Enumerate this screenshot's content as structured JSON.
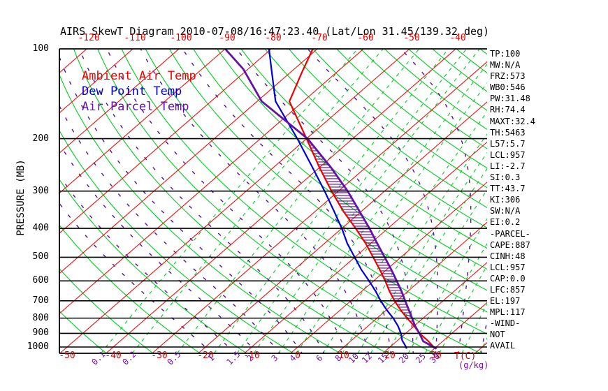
{
  "title": "AIRS SkewT Diagram 2010-07-08/16:47:23.40 (Lat/Lon 31.45/139.32 deg)",
  "legend": [
    {
      "label": "Ambient Air Temp",
      "color": "#ee0000"
    },
    {
      "label": "Dew Point Temp",
      "color": "#0000dd"
    },
    {
      "label": "Air Parcel Temp",
      "color": "#6611aa"
    }
  ],
  "axes": {
    "pressure_label": "PRESSURE (MB)",
    "pressure_ticks": [
      100,
      200,
      300,
      400,
      500,
      600,
      700,
      800,
      900,
      1000
    ],
    "top_temp_ticks": [
      -120,
      -110,
      -100,
      -90,
      -80,
      -70,
      -60,
      -50,
      -40
    ],
    "bottom_temp_ticks": [
      -50,
      -40,
      -30,
      -20,
      -10,
      0,
      10,
      20,
      30
    ],
    "mixing_ratio_labels": [
      0.1,
      0.2,
      0.5,
      1,
      1.5,
      2,
      3,
      4,
      6,
      8,
      10,
      12,
      15,
      20,
      25,
      30
    ],
    "temp_unit_label": "T(C)",
    "mixing_unit_label": "(g/kg)"
  },
  "side_panel": {
    "lines": [
      "TP:100",
      "MW:N/A",
      "FRZ:573",
      "WB0:546",
      "PW:31.48",
      "RH:74.4",
      "MAXT:32.4",
      "TH:5463",
      "L57:5.7",
      "LCL:957",
      "LI:-2.7",
      "SI:0.3",
      "TT:43.7",
      "KI:306",
      "SW:N/A",
      "EI:0.2",
      "-PARCEL-",
      "CAPE:887",
      "CINH:48",
      "LCL:957",
      "CAP:0.0",
      "LFC:857",
      "EL:197",
      "MPL:117",
      "-WIND-",
      "NOT",
      "AVAIL"
    ]
  },
  "chart_data": {
    "type": "line",
    "subtype": "skewt-log-p",
    "xlabel": "Temperature (C)",
    "ylabel": "Pressure (MB)",
    "pressure_range": [
      100,
      1050
    ],
    "grid": {
      "isotherms_c": {
        "min": -120,
        "max": 40,
        "step": 10,
        "color": "#ee1111"
      },
      "dry_adiabats_k": {
        "min": 220,
        "max": 470,
        "step": 10,
        "color": "#00cc22"
      },
      "moist_adiabats_c": {
        "min": -20,
        "max": 40,
        "step": 5,
        "color": "#551199"
      },
      "mixing_ratio_lines_gkg": [
        0.1,
        0.2,
        0.5,
        1,
        1.5,
        2,
        3,
        4,
        6,
        8,
        10,
        12,
        15,
        20,
        25,
        30,
        40,
        50,
        60,
        75
      ],
      "pressure_lines_mb": [
        200,
        300,
        400,
        500,
        600,
        700,
        800,
        900,
        1000
      ]
    },
    "hatch_region": {
      "between": [
        "Ambient Air Temp",
        "Air Parcel Temp"
      ],
      "from_mb": 855,
      "to_mb": 200,
      "color": "#6600aa"
    },
    "series": [
      {
        "name": "Ambient Air Temp",
        "color": "#ee0000",
        "width": 2.2,
        "points_p_t": [
          [
            1013,
            30.5
          ],
          [
            1000,
            29.5
          ],
          [
            950,
            26.5
          ],
          [
            900,
            23
          ],
          [
            850,
            20
          ],
          [
            800,
            16.5
          ],
          [
            750,
            13
          ],
          [
            700,
            9.5
          ],
          [
            650,
            6
          ],
          [
            600,
            2.5
          ],
          [
            550,
            -1.5
          ],
          [
            500,
            -6
          ],
          [
            450,
            -11
          ],
          [
            400,
            -17
          ],
          [
            350,
            -24
          ],
          [
            300,
            -31.5
          ],
          [
            250,
            -40
          ],
          [
            200,
            -50
          ],
          [
            150,
            -63
          ],
          [
            120,
            -67.5
          ],
          [
            100,
            -71
          ]
        ]
      },
      {
        "name": "Dew Point Temp",
        "color": "#0000dd",
        "width": 2.2,
        "points_p_t": [
          [
            1013,
            24
          ],
          [
            1000,
            23.5
          ],
          [
            950,
            21
          ],
          [
            900,
            19
          ],
          [
            850,
            16.5
          ],
          [
            800,
            13.5
          ],
          [
            750,
            10
          ],
          [
            700,
            6.5
          ],
          [
            650,
            3
          ],
          [
            600,
            -1
          ],
          [
            550,
            -5.5
          ],
          [
            500,
            -10
          ],
          [
            450,
            -15
          ],
          [
            400,
            -20
          ],
          [
            350,
            -26
          ],
          [
            300,
            -33
          ],
          [
            250,
            -41.5
          ],
          [
            200,
            -52
          ],
          [
            150,
            -66
          ],
          [
            120,
            -74
          ],
          [
            100,
            -80.5
          ]
        ]
      },
      {
        "name": "Air Parcel Temp",
        "color": "#6611aa",
        "width": 2.8,
        "points_p_t": [
          [
            1013,
            30.5
          ],
          [
            957,
            25.8
          ],
          [
            900,
            23
          ],
          [
            850,
            20.2
          ],
          [
            800,
            17.6
          ],
          [
            750,
            14.8
          ],
          [
            700,
            11.8
          ],
          [
            650,
            8.6
          ],
          [
            600,
            5
          ],
          [
            550,
            1
          ],
          [
            500,
            -3.5
          ],
          [
            450,
            -8.5
          ],
          [
            400,
            -14
          ],
          [
            350,
            -20.5
          ],
          [
            300,
            -28
          ],
          [
            250,
            -37.5
          ],
          [
            200,
            -49.8
          ],
          [
            150,
            -69
          ],
          [
            117,
            -81
          ],
          [
            100,
            -90
          ]
        ]
      }
    ]
  }
}
